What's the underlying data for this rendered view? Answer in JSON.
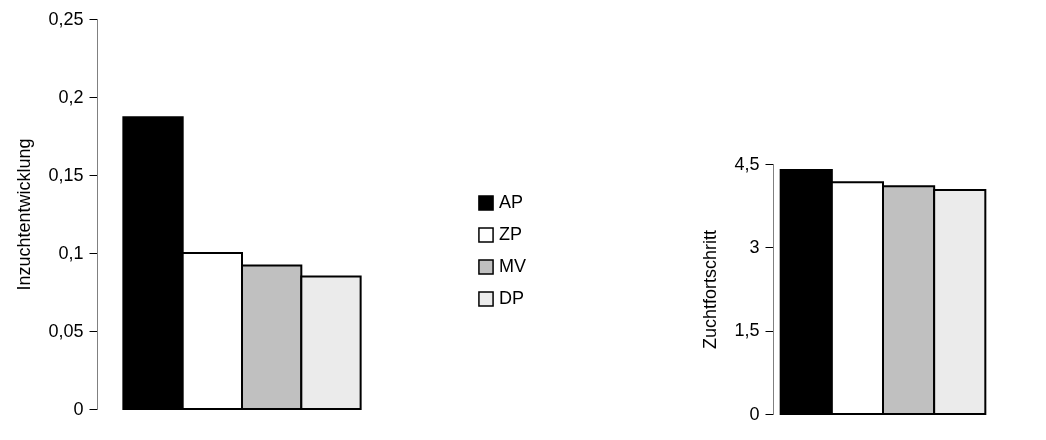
{
  "chart_data": [
    {
      "type": "bar",
      "ylabel": "Inzuchtentwicklung",
      "categories": [
        null
      ],
      "ylim": [
        0,
        0.25
      ],
      "yticks": [
        0,
        {
          "value": 0.05,
          "label": "0,05"
        },
        {
          "value": 0.1,
          "label": "0,1"
        },
        {
          "value": 0.15,
          "label": "0,15"
        },
        {
          "value": 0.2,
          "label": "0,2"
        },
        {
          "value": 0.25,
          "label": "0,25"
        }
      ],
      "legend": "right",
      "series": [
        {
          "name": "AP",
          "color": "#000000",
          "values": [
            0.187
          ]
        },
        {
          "name": "ZP",
          "color": "#ffffff",
          "values": [
            0.1
          ]
        },
        {
          "name": "MV",
          "color": "#c0c0c0",
          "values": [
            0.092
          ]
        },
        {
          "name": "DP",
          "color": "#ebebeb",
          "values": [
            0.085
          ]
        }
      ]
    },
    {
      "type": "bar",
      "ylabel": "Zuchtfortschritt",
      "categories": [
        null,
        null,
        null,
        null
      ],
      "ylim": [
        0,
        4.5
      ],
      "yticks": [
        {
          "value": 0,
          "label": "0"
        },
        {
          "value": 1.5,
          "label": "1,5"
        },
        {
          "value": 3,
          "label": "3"
        },
        {
          "value": 4.5,
          "label": "4,5"
        }
      ],
      "values": [
        4.39,
        4.17,
        4.1,
        4.03
      ],
      "colors": [
        "#000000",
        "#ffffff",
        "#c0c0c0",
        "#ebebeb"
      ]
    }
  ]
}
